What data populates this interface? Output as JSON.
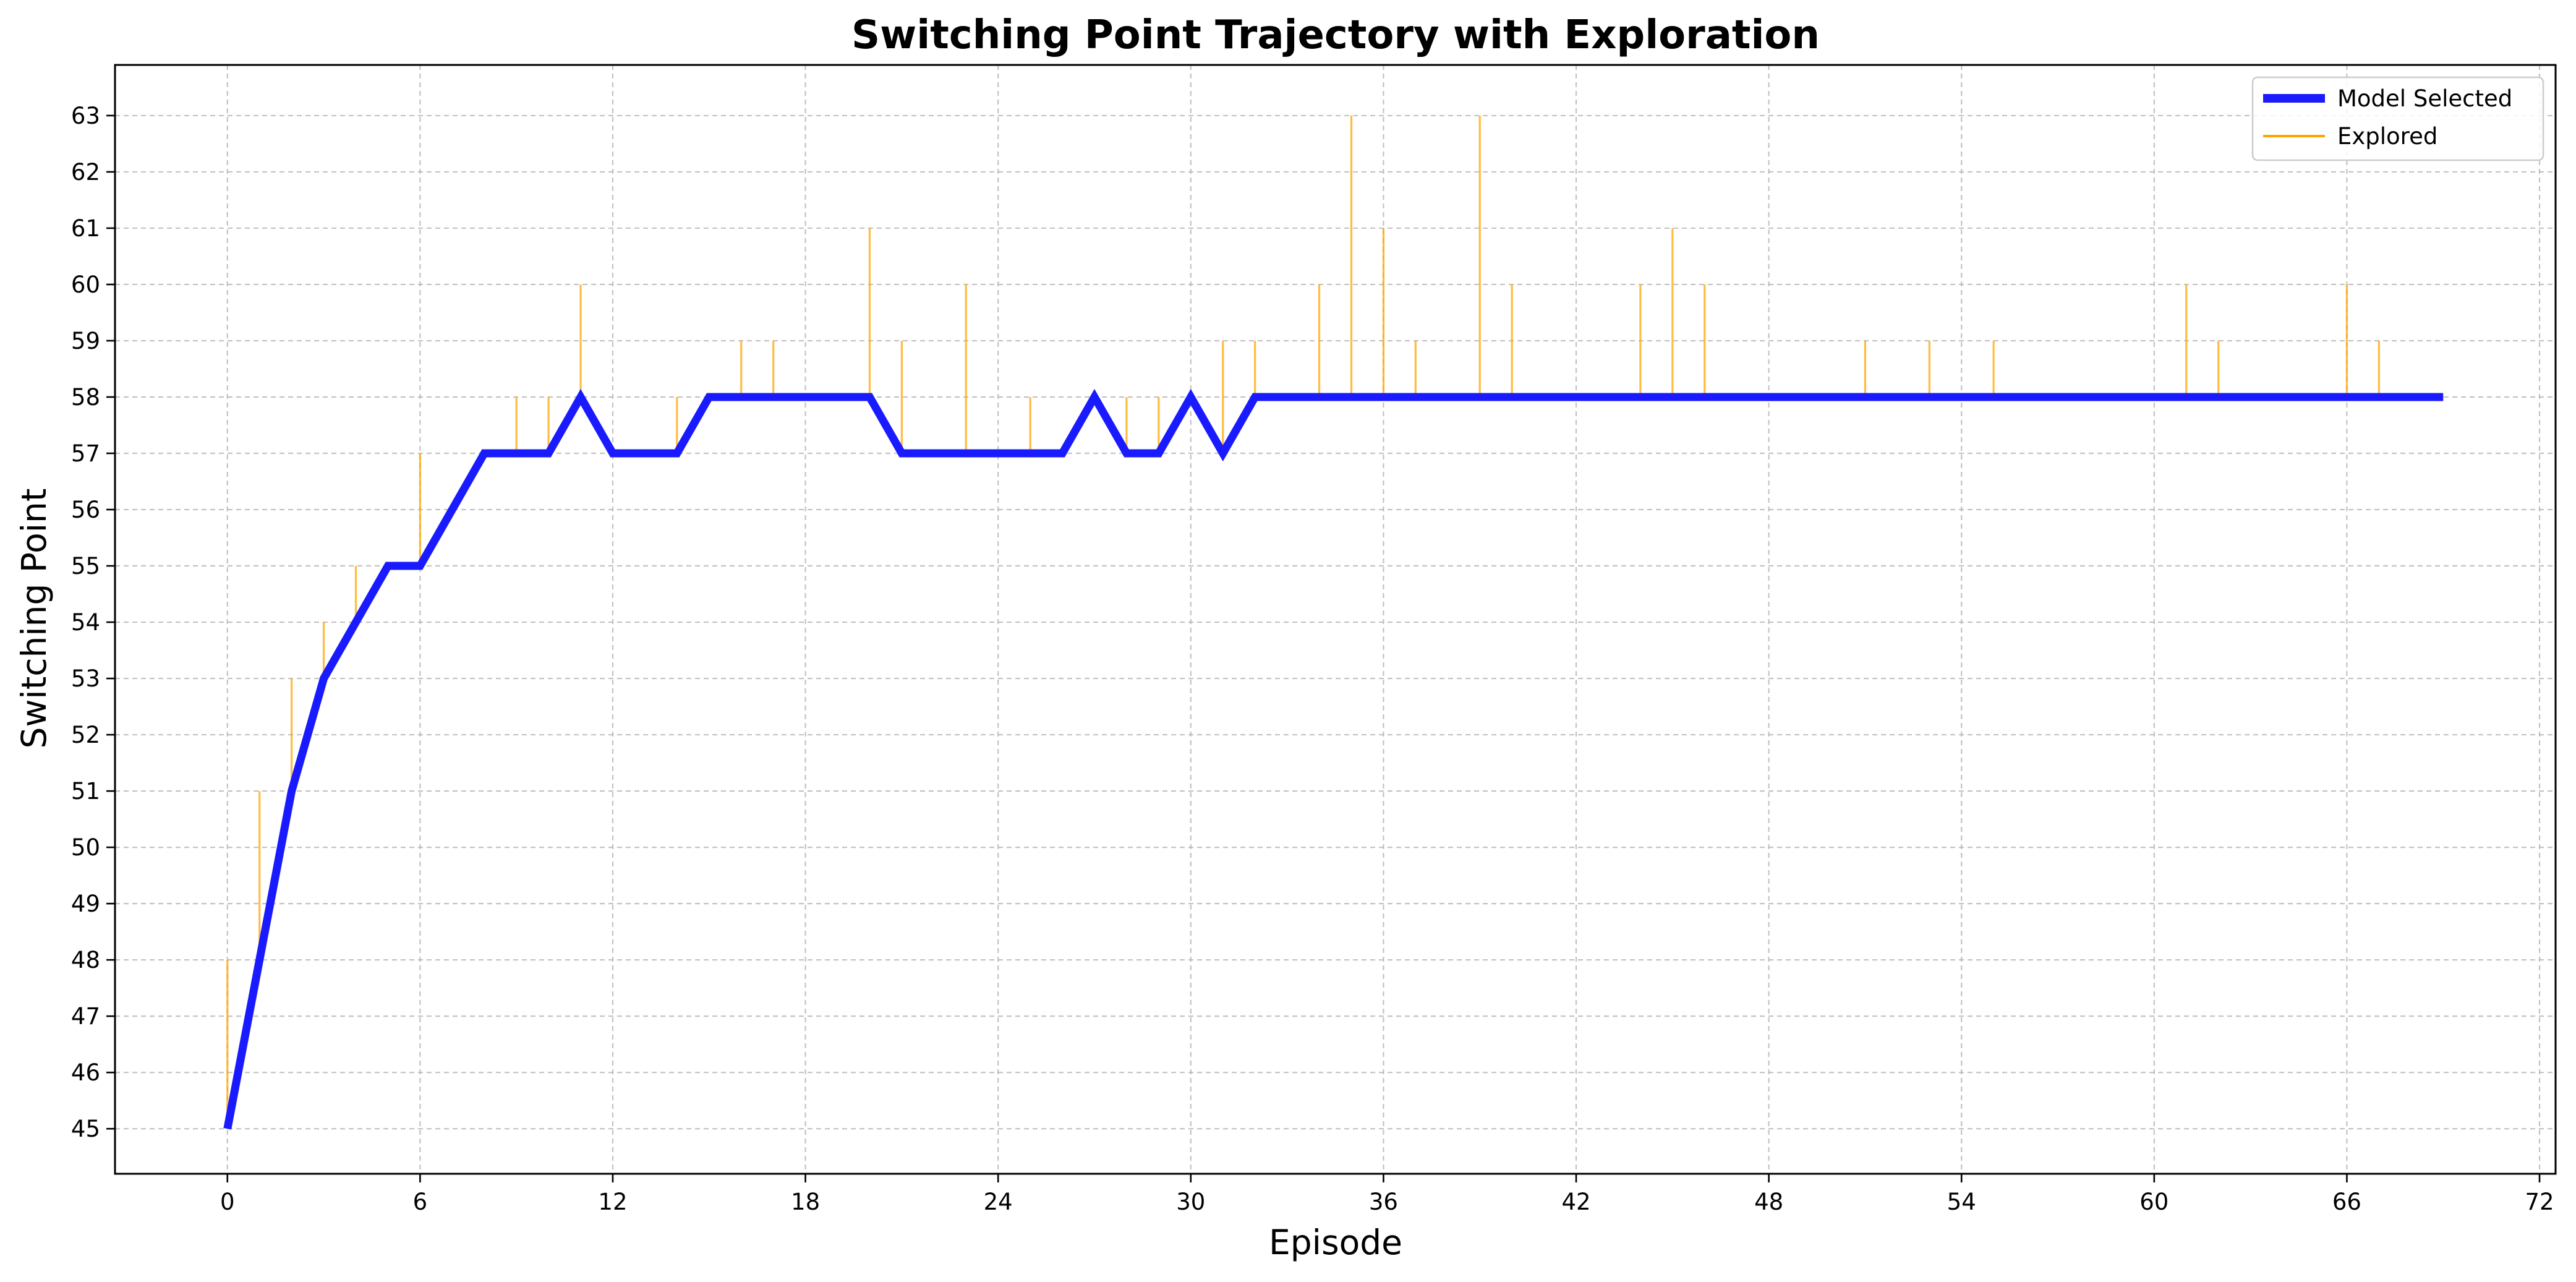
{
  "chart_data": {
    "type": "line",
    "title": "Switching Point Trajectory with Exploration",
    "xlabel": "Episode",
    "ylabel": "Switching Point",
    "xlim": [
      -3.5,
      72.5
    ],
    "ylim": [
      44.2,
      63.9
    ],
    "xticks": [
      0,
      6,
      12,
      18,
      24,
      30,
      36,
      42,
      48,
      54,
      60,
      66,
      72
    ],
    "yticks": [
      45,
      46,
      47,
      48,
      49,
      50,
      51,
      52,
      53,
      54,
      55,
      56,
      57,
      58,
      59,
      60,
      61,
      62,
      63
    ],
    "grid": true,
    "legend": "top-right",
    "colors": {
      "model": "#1a1aff",
      "explored": "#ffa500"
    },
    "series": [
      {
        "name": "Model Selected",
        "x": [
          0,
          1,
          2,
          3,
          4,
          5,
          6,
          7,
          8,
          9,
          10,
          11,
          12,
          13,
          14,
          15,
          16,
          17,
          18,
          19,
          20,
          21,
          22,
          23,
          24,
          25,
          26,
          27,
          28,
          29,
          30,
          31,
          32,
          33,
          34,
          35,
          36,
          37,
          38,
          39,
          40,
          41,
          42,
          43,
          44,
          45,
          46,
          47,
          48,
          49,
          50,
          51,
          52,
          53,
          54,
          55,
          56,
          57,
          58,
          59,
          60,
          61,
          62,
          63,
          64,
          65,
          66,
          67,
          68,
          69
        ],
        "y": [
          45,
          48,
          51,
          53,
          54,
          55,
          55,
          56,
          57,
          57,
          57,
          58,
          57,
          57,
          57,
          58,
          58,
          58,
          58,
          58,
          58,
          57,
          57,
          57,
          57,
          57,
          57,
          58,
          57,
          57,
          58,
          57,
          58,
          58,
          58,
          58,
          58,
          58,
          58,
          58,
          58,
          58,
          58,
          58,
          58,
          58,
          58,
          58,
          58,
          58,
          58,
          58,
          58,
          58,
          58,
          58,
          58,
          58,
          58,
          58,
          58,
          58,
          58,
          58,
          58,
          58,
          58,
          58,
          58,
          58
        ]
      },
      {
        "name": "Explored",
        "x": [
          0,
          1,
          2,
          3,
          4,
          6,
          9,
          10,
          11,
          14,
          16,
          17,
          20,
          21,
          23,
          25,
          28,
          29,
          31,
          32,
          34,
          35,
          36,
          37,
          39,
          40,
          44,
          45,
          46,
          51,
          53,
          55,
          61,
          62,
          66,
          67
        ],
        "y": [
          48,
          51,
          53,
          54,
          55,
          57,
          58,
          58,
          60,
          58,
          59,
          59,
          61,
          59,
          60,
          58,
          58,
          58,
          59,
          59,
          60,
          63,
          61,
          59,
          63,
          60,
          60,
          61,
          60,
          59,
          59,
          59,
          60,
          59,
          60,
          59
        ]
      }
    ]
  }
}
